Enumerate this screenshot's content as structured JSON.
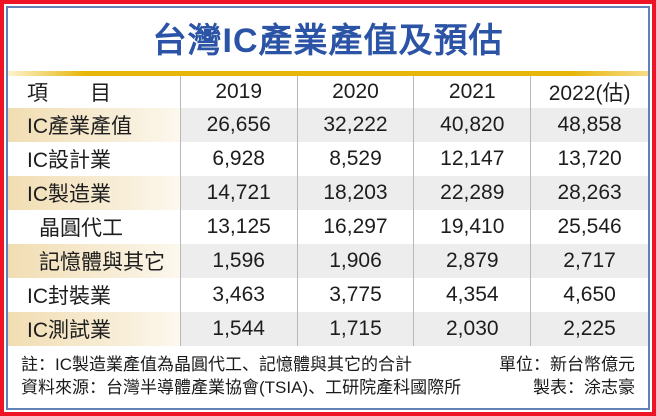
{
  "title": "台灣IC產業產值及預估",
  "table": {
    "header": {
      "item": "項　　目",
      "years": [
        "2019",
        "2020",
        "2021",
        "2022(估)"
      ]
    },
    "rows": [
      {
        "label": "IC產業產值",
        "values": [
          "26,656",
          "32,222",
          "40,820",
          "48,858"
        ]
      },
      {
        "label": "IC設計業",
        "values": [
          "6,928",
          "8,529",
          "12,147",
          "13,720"
        ]
      },
      {
        "label": "IC製造業",
        "values": [
          "14,721",
          "18,203",
          "22,289",
          "28,263"
        ]
      },
      {
        "label": "晶圓代工",
        "values": [
          "13,125",
          "16,297",
          "19,410",
          "25,546"
        ]
      },
      {
        "label": "記憶體與其它",
        "values": [
          "1,596",
          "1,906",
          "2,879",
          "2,717"
        ]
      },
      {
        "label": "IC封裝業",
        "values": [
          "3,463",
          "3,775",
          "4,354",
          "4,650"
        ]
      },
      {
        "label": "IC測試業",
        "values": [
          "1,544",
          "1,715",
          "2,030",
          "2,225"
        ]
      }
    ]
  },
  "footer": {
    "note": "註：IC製造業產值為晶圓代工、記憶體與其它的合計",
    "unit": "單位：新台幣億元",
    "source": "資料來源：台灣半導體產業協會(TSIA)、工研院產科國際所",
    "credit": "製表：涂志豪"
  },
  "colors": {
    "outer_border_red": "#ee1426",
    "inner_border_blue": "#5f81b4",
    "title_blue": "#2b53a6",
    "rule_gold": "#e7b60a",
    "stripe_label_cream": "#f1ddb2",
    "stripe_value_gray": "#ededed",
    "divider_gray": "#b8b8b8",
    "text_dark": "#1d1d1d"
  },
  "chart_data": {
    "type": "table",
    "title": "台灣IC產業產值及預估",
    "columns": [
      "項目",
      "2019",
      "2020",
      "2021",
      "2022(估)"
    ],
    "rows": [
      [
        "IC產業產值",
        26656,
        32222,
        40820,
        48858
      ],
      [
        "IC設計業",
        6928,
        8529,
        12147,
        13720
      ],
      [
        "IC製造業",
        14721,
        18203,
        22289,
        28263
      ],
      [
        "晶圓代工",
        13125,
        16297,
        19410,
        25546
      ],
      [
        "記憶體與其它",
        1596,
        1906,
        2879,
        2717
      ],
      [
        "IC封裝業",
        3463,
        3775,
        4354,
        4650
      ],
      [
        "IC測試業",
        1544,
        1715,
        2030,
        2225
      ]
    ],
    "unit": "新台幣億元",
    "notes": "IC製造業產值為晶圓代工、記憶體與其它的合計；資料來源：台灣半導體產業協會(TSIA)、工研院產科國際所；製表：涂志豪"
  }
}
